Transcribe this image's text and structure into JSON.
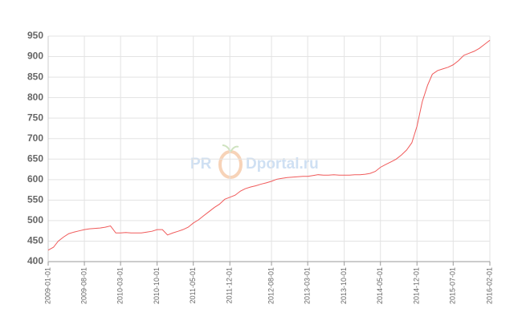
{
  "chart_data": {
    "type": "line",
    "watermark": [
      "PR",
      "Dportal.ru"
    ],
    "x": [
      "2009-01-01",
      "2009-02-01",
      "2009-03-01",
      "2009-04-01",
      "2009-05-01",
      "2009-06-01",
      "2009-07-01",
      "2009-08-01",
      "2009-09-01",
      "2009-10-01",
      "2009-11-01",
      "2009-12-01",
      "2010-01-01",
      "2010-02-01",
      "2010-03-01",
      "2010-04-01",
      "2010-05-01",
      "2010-06-01",
      "2010-07-01",
      "2010-08-01",
      "2010-09-01",
      "2010-10-01",
      "2010-11-01",
      "2010-12-01",
      "2011-01-01",
      "2011-02-01",
      "2011-03-01",
      "2011-04-01",
      "2011-05-01",
      "2011-06-01",
      "2011-07-01",
      "2011-08-01",
      "2011-09-01",
      "2011-10-01",
      "2011-11-01",
      "2011-12-01",
      "2012-01-01",
      "2012-02-01",
      "2012-03-01",
      "2012-04-01",
      "2012-05-01",
      "2012-06-01",
      "2012-07-01",
      "2012-08-01",
      "2012-09-01",
      "2012-10-01",
      "2012-11-01",
      "2012-12-01",
      "2013-01-01",
      "2013-02-01",
      "2013-03-01",
      "2013-04-01",
      "2013-05-01",
      "2013-06-01",
      "2013-07-01",
      "2013-08-01",
      "2013-09-01",
      "2013-10-01",
      "2013-11-01",
      "2013-12-01",
      "2014-01-01",
      "2014-02-01",
      "2014-03-01",
      "2014-04-01",
      "2014-05-01",
      "2014-06-01",
      "2014-07-01",
      "2014-08-01",
      "2014-09-01",
      "2014-10-01",
      "2014-11-01",
      "2014-12-01",
      "2015-01-01",
      "2015-02-01",
      "2015-03-01",
      "2015-04-01",
      "2015-05-01",
      "2015-06-01",
      "2015-07-01",
      "2015-08-01",
      "2015-09-01",
      "2015-10-01",
      "2015-11-01",
      "2015-12-01",
      "2016-01-01",
      "2016-02-01"
    ],
    "values": [
      428,
      435,
      450,
      460,
      468,
      472,
      475,
      478,
      480,
      481,
      482,
      484,
      487,
      470,
      470,
      471,
      470,
      470,
      470,
      472,
      474,
      478,
      478,
      465,
      470,
      474,
      478,
      484,
      494,
      502,
      512,
      522,
      532,
      540,
      552,
      557,
      562,
      572,
      578,
      582,
      585,
      589,
      592,
      596,
      601,
      603,
      605,
      606,
      607,
      608,
      608,
      610,
      612,
      611,
      611,
      612,
      611,
      611,
      611,
      612,
      612,
      613,
      615,
      620,
      630,
      637,
      643,
      650,
      660,
      672,
      690,
      730,
      790,
      830,
      857,
      866,
      870,
      874,
      880,
      890,
      903,
      908,
      913,
      920,
      930,
      940
    ],
    "color": "#f05a5a",
    "xlim": [
      "2009-01-01",
      "2016-02-01"
    ],
    "xticks": [
      "2009-01-01",
      "2009-08-01",
      "2010-03-01",
      "2010-10-01",
      "2011-05-01",
      "2011-12-01",
      "2012-08-01",
      "2013-03-01",
      "2013-10-01",
      "2014-05-01",
      "2014-12-01",
      "2015-07-01",
      "2016-02-01"
    ],
    "ylim": [
      400,
      950
    ],
    "yticks": [
      400,
      450,
      500,
      550,
      600,
      650,
      700,
      750,
      800,
      850,
      900,
      950
    ],
    "grid": true
  }
}
